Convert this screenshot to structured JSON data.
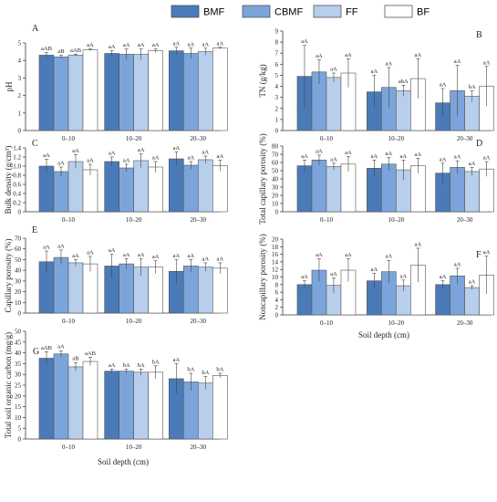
{
  "legend": {
    "items": [
      {
        "label": "BMF",
        "color": "#4a7ab8"
      },
      {
        "label": "CBMF",
        "color": "#7ba5da"
      },
      {
        "label": "FF",
        "color": "#b7cfec"
      },
      {
        "label": "BF",
        "color": "#ffffff"
      }
    ]
  },
  "chart_data": [
    {
      "panel": "A",
      "type": "bar",
      "ylabel": "pH",
      "ylim": [
        0,
        5
      ],
      "yticks": [
        "0",
        "1",
        "2",
        "3",
        "4",
        "5"
      ],
      "yvals": [
        0,
        1,
        2,
        3,
        4,
        5
      ],
      "categories": [
        "0–10",
        "10–20",
        "20–30"
      ],
      "series": [
        {
          "name": "BMF",
          "values": [
            4.3,
            4.4,
            4.55
          ],
          "err": [
            0.15,
            0.15,
            0.2
          ],
          "labels": [
            "aAB",
            "aA",
            "aA"
          ]
        },
        {
          "name": "CBMF",
          "values": [
            4.2,
            4.35,
            4.4
          ],
          "err": [
            0.1,
            0.3,
            0.3
          ],
          "labels": [
            "aB",
            "aA",
            "aA"
          ]
        },
        {
          "name": "FF",
          "values": [
            4.3,
            4.35,
            4.5
          ],
          "err": [
            0.05,
            0.3,
            0.2
          ],
          "labels": [
            "aAB",
            "aA",
            "aA"
          ]
        },
        {
          "name": "BF",
          "values": [
            4.6,
            4.55,
            4.7
          ],
          "err": [
            0.05,
            0.1,
            0.05
          ],
          "labels": [
            "aA",
            "aA",
            "aA"
          ]
        }
      ]
    },
    {
      "panel": "B",
      "type": "bar",
      "ylabel": "TN (g/kg)",
      "ylim": [
        0,
        9
      ],
      "yticks": [
        "0",
        "1",
        "2",
        "3",
        "4",
        "5",
        "6",
        "7",
        "8",
        "9"
      ],
      "yvals": [
        0,
        1,
        2,
        3,
        4,
        5,
        6,
        7,
        8,
        9
      ],
      "categories": [
        "0–10",
        "10–20",
        "20–30"
      ],
      "series": [
        {
          "name": "BMF",
          "values": [
            4.9,
            3.5,
            2.5
          ],
          "err": [
            2.8,
            1.5,
            1.3
          ],
          "labels": [
            "aA",
            "aA",
            "aA"
          ]
        },
        {
          "name": "CBMF",
          "values": [
            5.3,
            3.9,
            3.6
          ],
          "err": [
            1.1,
            1.8,
            2.3
          ],
          "labels": [
            "aA",
            "aA",
            "aA"
          ]
        },
        {
          "name": "FF",
          "values": [
            4.8,
            3.6,
            3.1
          ],
          "err": [
            0.4,
            0.5,
            0.5
          ],
          "labels": [
            "aA",
            "abA",
            "bA"
          ]
        },
        {
          "name": "BF",
          "values": [
            5.2,
            4.7,
            4.0
          ],
          "err": [
            1.3,
            1.8,
            1.8
          ],
          "labels": [
            "aA",
            "aA",
            "aA"
          ]
        }
      ]
    },
    {
      "panel": "C",
      "type": "bar",
      "ylabel": "Bulk density (g/cm³)",
      "ylim": [
        0,
        1.4
      ],
      "yticks": [
        "0",
        "0.2",
        "0.4",
        "0.6",
        "0.8",
        "1.0",
        "1.2",
        "1.4"
      ],
      "yvals": [
        0,
        0.2,
        0.4,
        0.6,
        0.8,
        1.0,
        1.2,
        1.4
      ],
      "categories": [
        "0–10",
        "10–20",
        "20–30"
      ],
      "series": [
        {
          "name": "BMF",
          "values": [
            1.0,
            1.1,
            1.16
          ],
          "err": [
            0.15,
            0.1,
            0.15
          ],
          "labels": [
            "aA",
            "aA",
            "aA"
          ]
        },
        {
          "name": "CBMF",
          "values": [
            0.88,
            0.96,
            1.02
          ],
          "err": [
            0.1,
            0.08,
            0.08
          ],
          "labels": [
            "aA",
            "aA",
            "aA"
          ]
        },
        {
          "name": "FF",
          "values": [
            1.1,
            1.12,
            1.14
          ],
          "err": [
            0.15,
            0.15,
            0.08
          ],
          "labels": [
            "aA",
            "aA",
            "aA"
          ]
        },
        {
          "name": "BF",
          "values": [
            0.92,
            0.98,
            1.01
          ],
          "err": [
            0.12,
            0.12,
            0.12
          ],
          "labels": [
            "aA",
            "aA",
            "aA"
          ]
        }
      ]
    },
    {
      "panel": "D",
      "type": "bar",
      "ylabel": "Total capillary porosity (%)",
      "ylim": [
        0,
        80
      ],
      "yticks": [
        "0",
        "10",
        "20",
        "30",
        "40",
        "50",
        "60",
        "70",
        "80"
      ],
      "yvals": [
        0,
        10,
        20,
        30,
        40,
        50,
        60,
        70,
        80
      ],
      "categories": [
        "0–10",
        "10–20",
        "20–30"
      ],
      "series": [
        {
          "name": "BMF",
          "values": [
            56,
            53,
            47
          ],
          "err": [
            7,
            10,
            12
          ],
          "labels": [
            "aA",
            "aA",
            "aA"
          ]
        },
        {
          "name": "CBMF",
          "values": [
            63,
            58,
            54
          ],
          "err": [
            6,
            8,
            8
          ],
          "labels": [
            "aA",
            "aA",
            "aA"
          ]
        },
        {
          "name": "FF",
          "values": [
            55,
            51,
            49
          ],
          "err": [
            4,
            12,
            5
          ],
          "labels": [
            "aA",
            "aA",
            "aA"
          ]
        },
        {
          "name": "BF",
          "values": [
            58,
            56,
            52
          ],
          "err": [
            9,
            9,
            9
          ],
          "labels": [
            "aA",
            "aA",
            "aA"
          ]
        }
      ]
    },
    {
      "panel": "E",
      "type": "bar",
      "ylabel": "Capillary porosity (%)",
      "ylim": [
        0,
        70
      ],
      "yticks": [
        "0",
        "10",
        "20",
        "30",
        "40",
        "50",
        "60",
        "70"
      ],
      "yvals": [
        0,
        10,
        20,
        30,
        40,
        50,
        60,
        70
      ],
      "categories": [
        "0–10",
        "10–20",
        "20–30"
      ],
      "series": [
        {
          "name": "BMF",
          "values": [
            48,
            44,
            39
          ],
          "err": [
            10,
            11,
            11
          ],
          "labels": [
            "aA",
            "aA",
            "aA"
          ]
        },
        {
          "name": "CBMF",
          "values": [
            52,
            46,
            44
          ],
          "err": [
            7,
            5,
            6
          ],
          "labels": [
            "aA",
            "aA",
            "aA"
          ]
        },
        {
          "name": "FF",
          "values": [
            47,
            43,
            43
          ],
          "err": [
            3,
            8,
            4
          ],
          "labels": [
            "aA",
            "aA",
            "aA"
          ]
        },
        {
          "name": "BF",
          "values": [
            46,
            43,
            42
          ],
          "err": [
            7,
            6,
            5
          ],
          "labels": [
            "aA",
            "aA",
            "aA"
          ]
        }
      ]
    },
    {
      "panel": "F",
      "type": "bar",
      "ylabel": "Noncapillary porosity (%)",
      "ylim": [
        0,
        20
      ],
      "yticks": [
        "0",
        "2",
        "4",
        "6",
        "8",
        "10",
        "12",
        "14",
        "16",
        "18",
        "20"
      ],
      "yvals": [
        0,
        2,
        4,
        6,
        8,
        10,
        12,
        14,
        16,
        18,
        20
      ],
      "categories": [
        "0–10",
        "10–20",
        "20–30"
      ],
      "series": [
        {
          "name": "BMF",
          "values": [
            8,
            9,
            8
          ],
          "err": [
            1,
            2,
            1
          ],
          "labels": [
            "aA",
            "aA",
            "aA"
          ]
        },
        {
          "name": "CBMF",
          "values": [
            11.8,
            11.4,
            10.3
          ],
          "err": [
            3,
            3,
            2
          ],
          "labels": [
            "aA",
            "aA",
            "aA"
          ]
        },
        {
          "name": "FF",
          "values": [
            7.8,
            7.7,
            7.2
          ],
          "err": [
            2,
            1.5,
            0.5
          ],
          "labels": [
            "aA",
            "aA",
            "aA"
          ]
        },
        {
          "name": "BF",
          "values": [
            11.8,
            13.1,
            10.5
          ],
          "err": [
            3,
            4.5,
            5
          ],
          "labels": [
            "aA",
            "aA",
            "aA"
          ]
        }
      ]
    },
    {
      "panel": "G",
      "type": "bar",
      "ylabel": "Total soil organic carbon (mg/g)",
      "ylim": [
        0,
        50
      ],
      "yticks": [
        "0",
        "5",
        "10",
        "15",
        "20",
        "25",
        "30",
        "35",
        "40",
        "45",
        "50"
      ],
      "yvals": [
        0,
        5,
        10,
        15,
        20,
        25,
        30,
        35,
        40,
        45,
        50
      ],
      "categories": [
        "0–10",
        "10–20",
        "20–30"
      ],
      "series": [
        {
          "name": "BMF",
          "values": [
            37.5,
            31.5,
            28
          ],
          "err": [
            3,
            1,
            7
          ],
          "labels": [
            "aAB",
            "aA",
            "aA"
          ]
        },
        {
          "name": "CBMF",
          "values": [
            39.5,
            31.5,
            26.5
          ],
          "err": [
            1.5,
            1,
            4
          ],
          "labels": [
            "aA",
            "bA",
            "bA"
          ]
        },
        {
          "name": "FF",
          "values": [
            33.5,
            31,
            26
          ],
          "err": [
            2,
            1.5,
            3
          ],
          "labels": [
            "aB",
            "bA",
            "bA"
          ]
        },
        {
          "name": "BF",
          "values": [
            36,
            31,
            29.5
          ],
          "err": [
            2,
            3,
            1
          ],
          "labels": [
            "aAB",
            "bA",
            "bA"
          ]
        }
      ]
    }
  ],
  "xlabel": "Soil depth (cm)"
}
